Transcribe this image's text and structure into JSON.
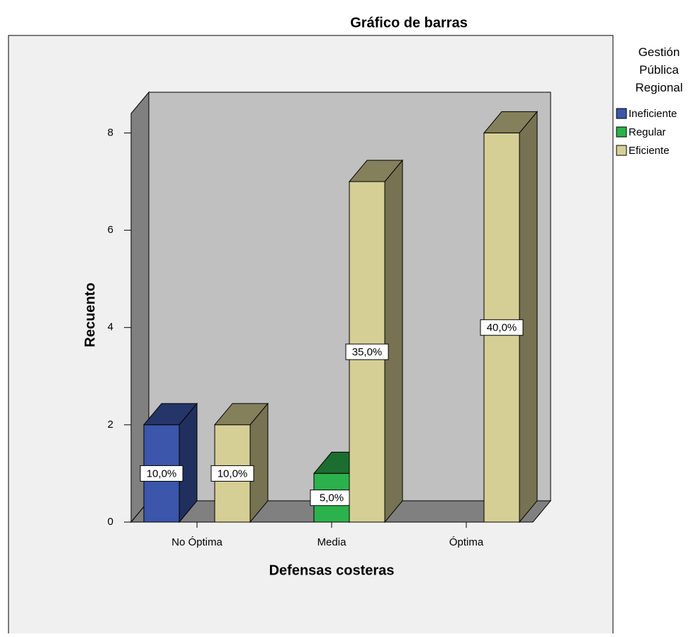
{
  "chart_data": {
    "type": "bar3d",
    "title": "Gráfico de barras",
    "x_label": "Defensas costeras",
    "y_label": "Recuento",
    "legend_title": "Gestión Pública Regional",
    "categories": [
      "No Óptima",
      "Media",
      "Óptima"
    ],
    "series": [
      {
        "name": "Ineficiente",
        "color": "#3b56aa",
        "values": [
          2,
          0,
          0
        ],
        "percentages": [
          10,
          0,
          0
        ],
        "percentage_labels": [
          "10,0%",
          null,
          null
        ]
      },
      {
        "name": "Regular",
        "color": "#2bb24c",
        "values": [
          0,
          1,
          0
        ],
        "percentages": [
          0,
          5,
          0
        ],
        "percentage_labels": [
          null,
          "5,0%",
          null
        ]
      },
      {
        "name": "Eficiente",
        "color": "#d6cf95",
        "values": [
          2,
          7,
          8
        ],
        "percentages": [
          10,
          35,
          40
        ],
        "percentage_labels": [
          "10,0%",
          "35,0%",
          "40,0%"
        ]
      }
    ],
    "ylim": [
      0,
      8.4
    ],
    "yticks": [
      0,
      2,
      4,
      6,
      8
    ],
    "legend": "right"
  }
}
